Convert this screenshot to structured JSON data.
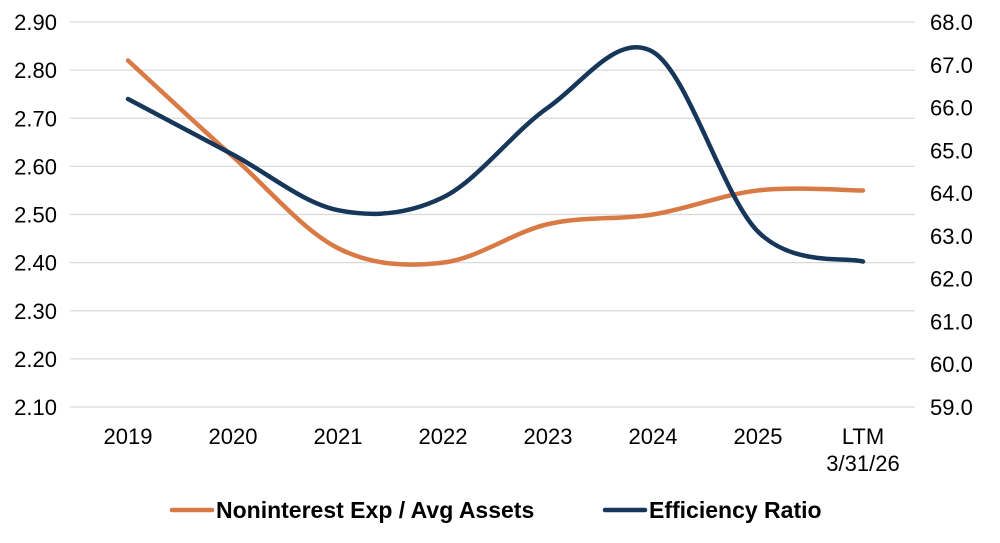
{
  "chart_data": {
    "type": "line",
    "title": "",
    "categories": [
      [
        "2019"
      ],
      [
        "2020"
      ],
      [
        "2021"
      ],
      [
        "2022"
      ],
      [
        "2023"
      ],
      [
        "2024"
      ],
      [
        "2025"
      ],
      [
        "LTM",
        "3/31/26"
      ]
    ],
    "y_left": {
      "label": "",
      "range": [
        2.1,
        2.9
      ],
      "ticks": [
        "2.10",
        "2.20",
        "2.30",
        "2.40",
        "2.50",
        "2.60",
        "2.70",
        "2.80",
        "2.90"
      ]
    },
    "y_right": {
      "label": "",
      "range": [
        59.0,
        68.0
      ],
      "ticks": [
        "59.0",
        "60.0",
        "61.0",
        "62.0",
        "63.0",
        "64.0",
        "65.0",
        "66.0",
        "67.0",
        "68.0"
      ]
    },
    "grid": "horizontal",
    "legend_position": "bottom",
    "series": [
      {
        "name": "Noninterest Exp / Avg Assets",
        "axis": "left",
        "color": "#D97A45",
        "values": [
          2.82,
          2.62,
          2.43,
          2.4,
          2.48,
          2.5,
          2.55,
          2.55
        ]
      },
      {
        "name": "Efficiency Ratio",
        "axis": "right",
        "color": "#16375A",
        "values": [
          66.2,
          64.9,
          63.6,
          63.9,
          66.0,
          67.3,
          63.1,
          62.4
        ]
      }
    ]
  }
}
